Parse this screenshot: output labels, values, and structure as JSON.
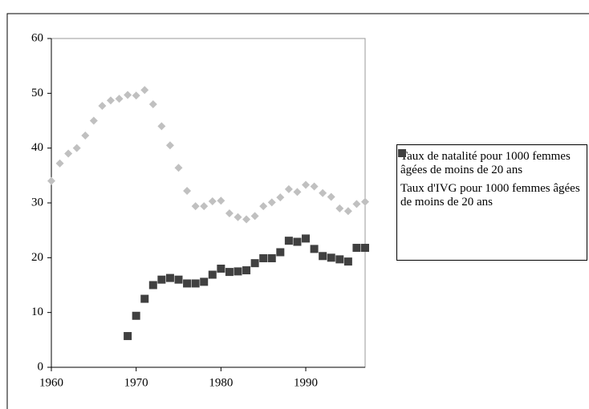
{
  "chart_data": {
    "type": "scatter",
    "xlim": [
      1960,
      1997
    ],
    "xticks": [
      1960,
      1970,
      1980,
      1990
    ],
    "ylim": [
      0,
      60
    ],
    "yticks": [
      0,
      10,
      20,
      30,
      40,
      50,
      60
    ],
    "legend": "right",
    "series": [
      {
        "name": "Taux de natalité pour 1000 femmes  âgées de moins de 20 ans",
        "color": "#c0c0c0",
        "marker": "diamond",
        "x": [
          1960,
          1961,
          1962,
          1963,
          1964,
          1965,
          1966,
          1967,
          1968,
          1969,
          1970,
          1971,
          1972,
          1973,
          1974,
          1975,
          1976,
          1977,
          1978,
          1979,
          1980,
          1981,
          1982,
          1983,
          1984,
          1985,
          1986,
          1987,
          1988,
          1989,
          1990,
          1991,
          1992,
          1993,
          1994,
          1995,
          1996,
          1997
        ],
        "values": [
          34,
          37.2,
          39,
          40,
          42.3,
          45,
          47.7,
          48.7,
          49,
          49.7,
          49.6,
          50.6,
          48,
          44,
          40.5,
          36.4,
          32.2,
          29.4,
          29.4,
          30.3,
          30.4,
          28.1,
          27.4,
          27,
          27.6,
          29.4,
          30.1,
          31,
          32.5,
          32,
          33.3,
          33,
          31.8,
          31.1,
          29,
          28.5,
          29.8,
          30.2
        ]
      },
      {
        "name": "Taux d'IVG pour 1000 femmes  âgées de moins de 20 ans",
        "color": "#404040",
        "marker": "square",
        "x": [
          1969,
          1970,
          1971,
          1972,
          1973,
          1974,
          1975,
          1976,
          1977,
          1978,
          1979,
          1980,
          1981,
          1982,
          1983,
          1984,
          1985,
          1986,
          1987,
          1988,
          1989,
          1990,
          1991,
          1992,
          1993,
          1994,
          1995,
          1996,
          1997
        ],
        "values": [
          5.7,
          9.4,
          12.5,
          15,
          16,
          16.3,
          16,
          15.3,
          15.3,
          15.6,
          16.9,
          18,
          17.4,
          17.5,
          17.7,
          19,
          19.9,
          19.9,
          21,
          23.1,
          22.9,
          23.5,
          21.6,
          20.3,
          20,
          19.7,
          19.3,
          21.8,
          21.8
        ]
      }
    ]
  }
}
